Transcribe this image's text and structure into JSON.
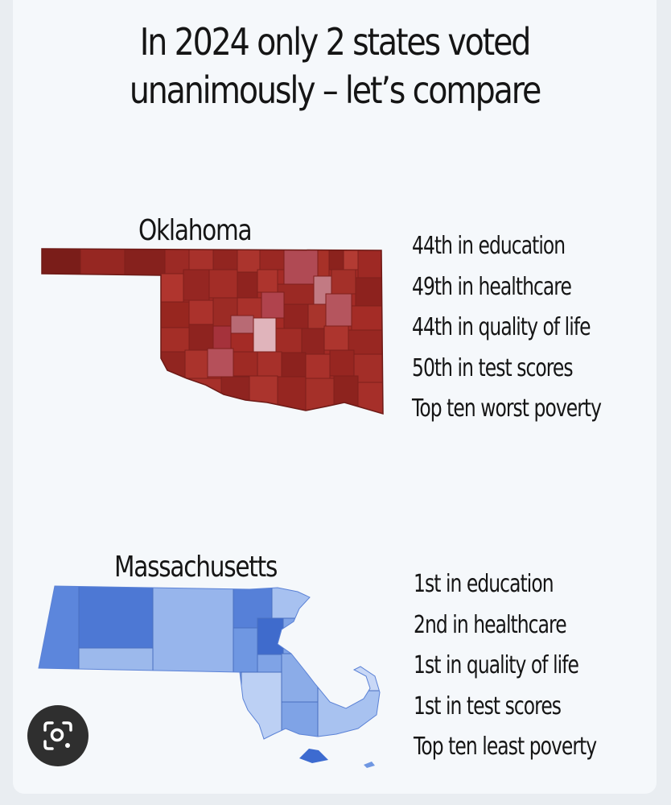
{
  "headline": {
    "line1": "In 2024 only 2 states voted",
    "line2": "unanimously – let’s compare"
  },
  "states": [
    {
      "name": "Oklahoma",
      "party_color": "#a7302a",
      "stats": [
        "44th in education",
        "49th in healthcare",
        "44th in quality of life",
        "50th in test scores",
        "Top ten worst poverty"
      ]
    },
    {
      "name": "Massachusetts",
      "party_color": "#5a86dc",
      "stats": [
        "1st in education",
        "2nd in healthcare",
        "1st in quality of life",
        "1st in test scores",
        "Top ten least poverty"
      ]
    }
  ],
  "overlay": {
    "icon": "lens-search-icon"
  }
}
